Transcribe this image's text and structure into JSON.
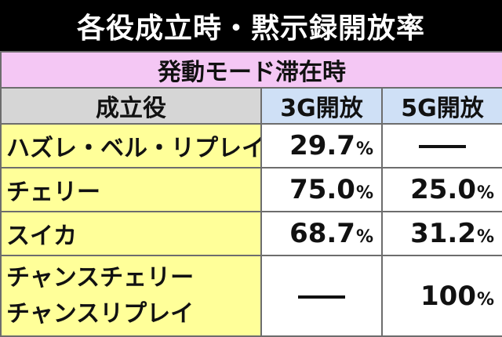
{
  "title": "各役成立時・黙示録開放率",
  "subtitle": "発動モード滞在時",
  "headers": {
    "role": "成立役",
    "col3g": "3G開放",
    "col5g": "5G開放"
  },
  "rows": [
    {
      "role": "ハズレ・ベル・リプレイ",
      "v3g": "29.7",
      "v5g": null
    },
    {
      "role": "チェリー",
      "v3g": "75.0",
      "v5g": "25.0"
    },
    {
      "role": "スイカ",
      "v3g": "68.7",
      "v5g": "31.2"
    },
    {
      "role_line1": "チャンスチェリー",
      "role_line2": "チャンスリプレイ",
      "v3g": null,
      "v5g": "100"
    }
  ],
  "unit": "%",
  "colors": {
    "title_bg": "#000000",
    "subtitle_bg": "#f4c7f4",
    "role_header_bg": "#d6d6d6",
    "value_header_bg": "#cfe0f6",
    "role_cell_bg": "#ffff99",
    "border": "#6d6d6d"
  }
}
